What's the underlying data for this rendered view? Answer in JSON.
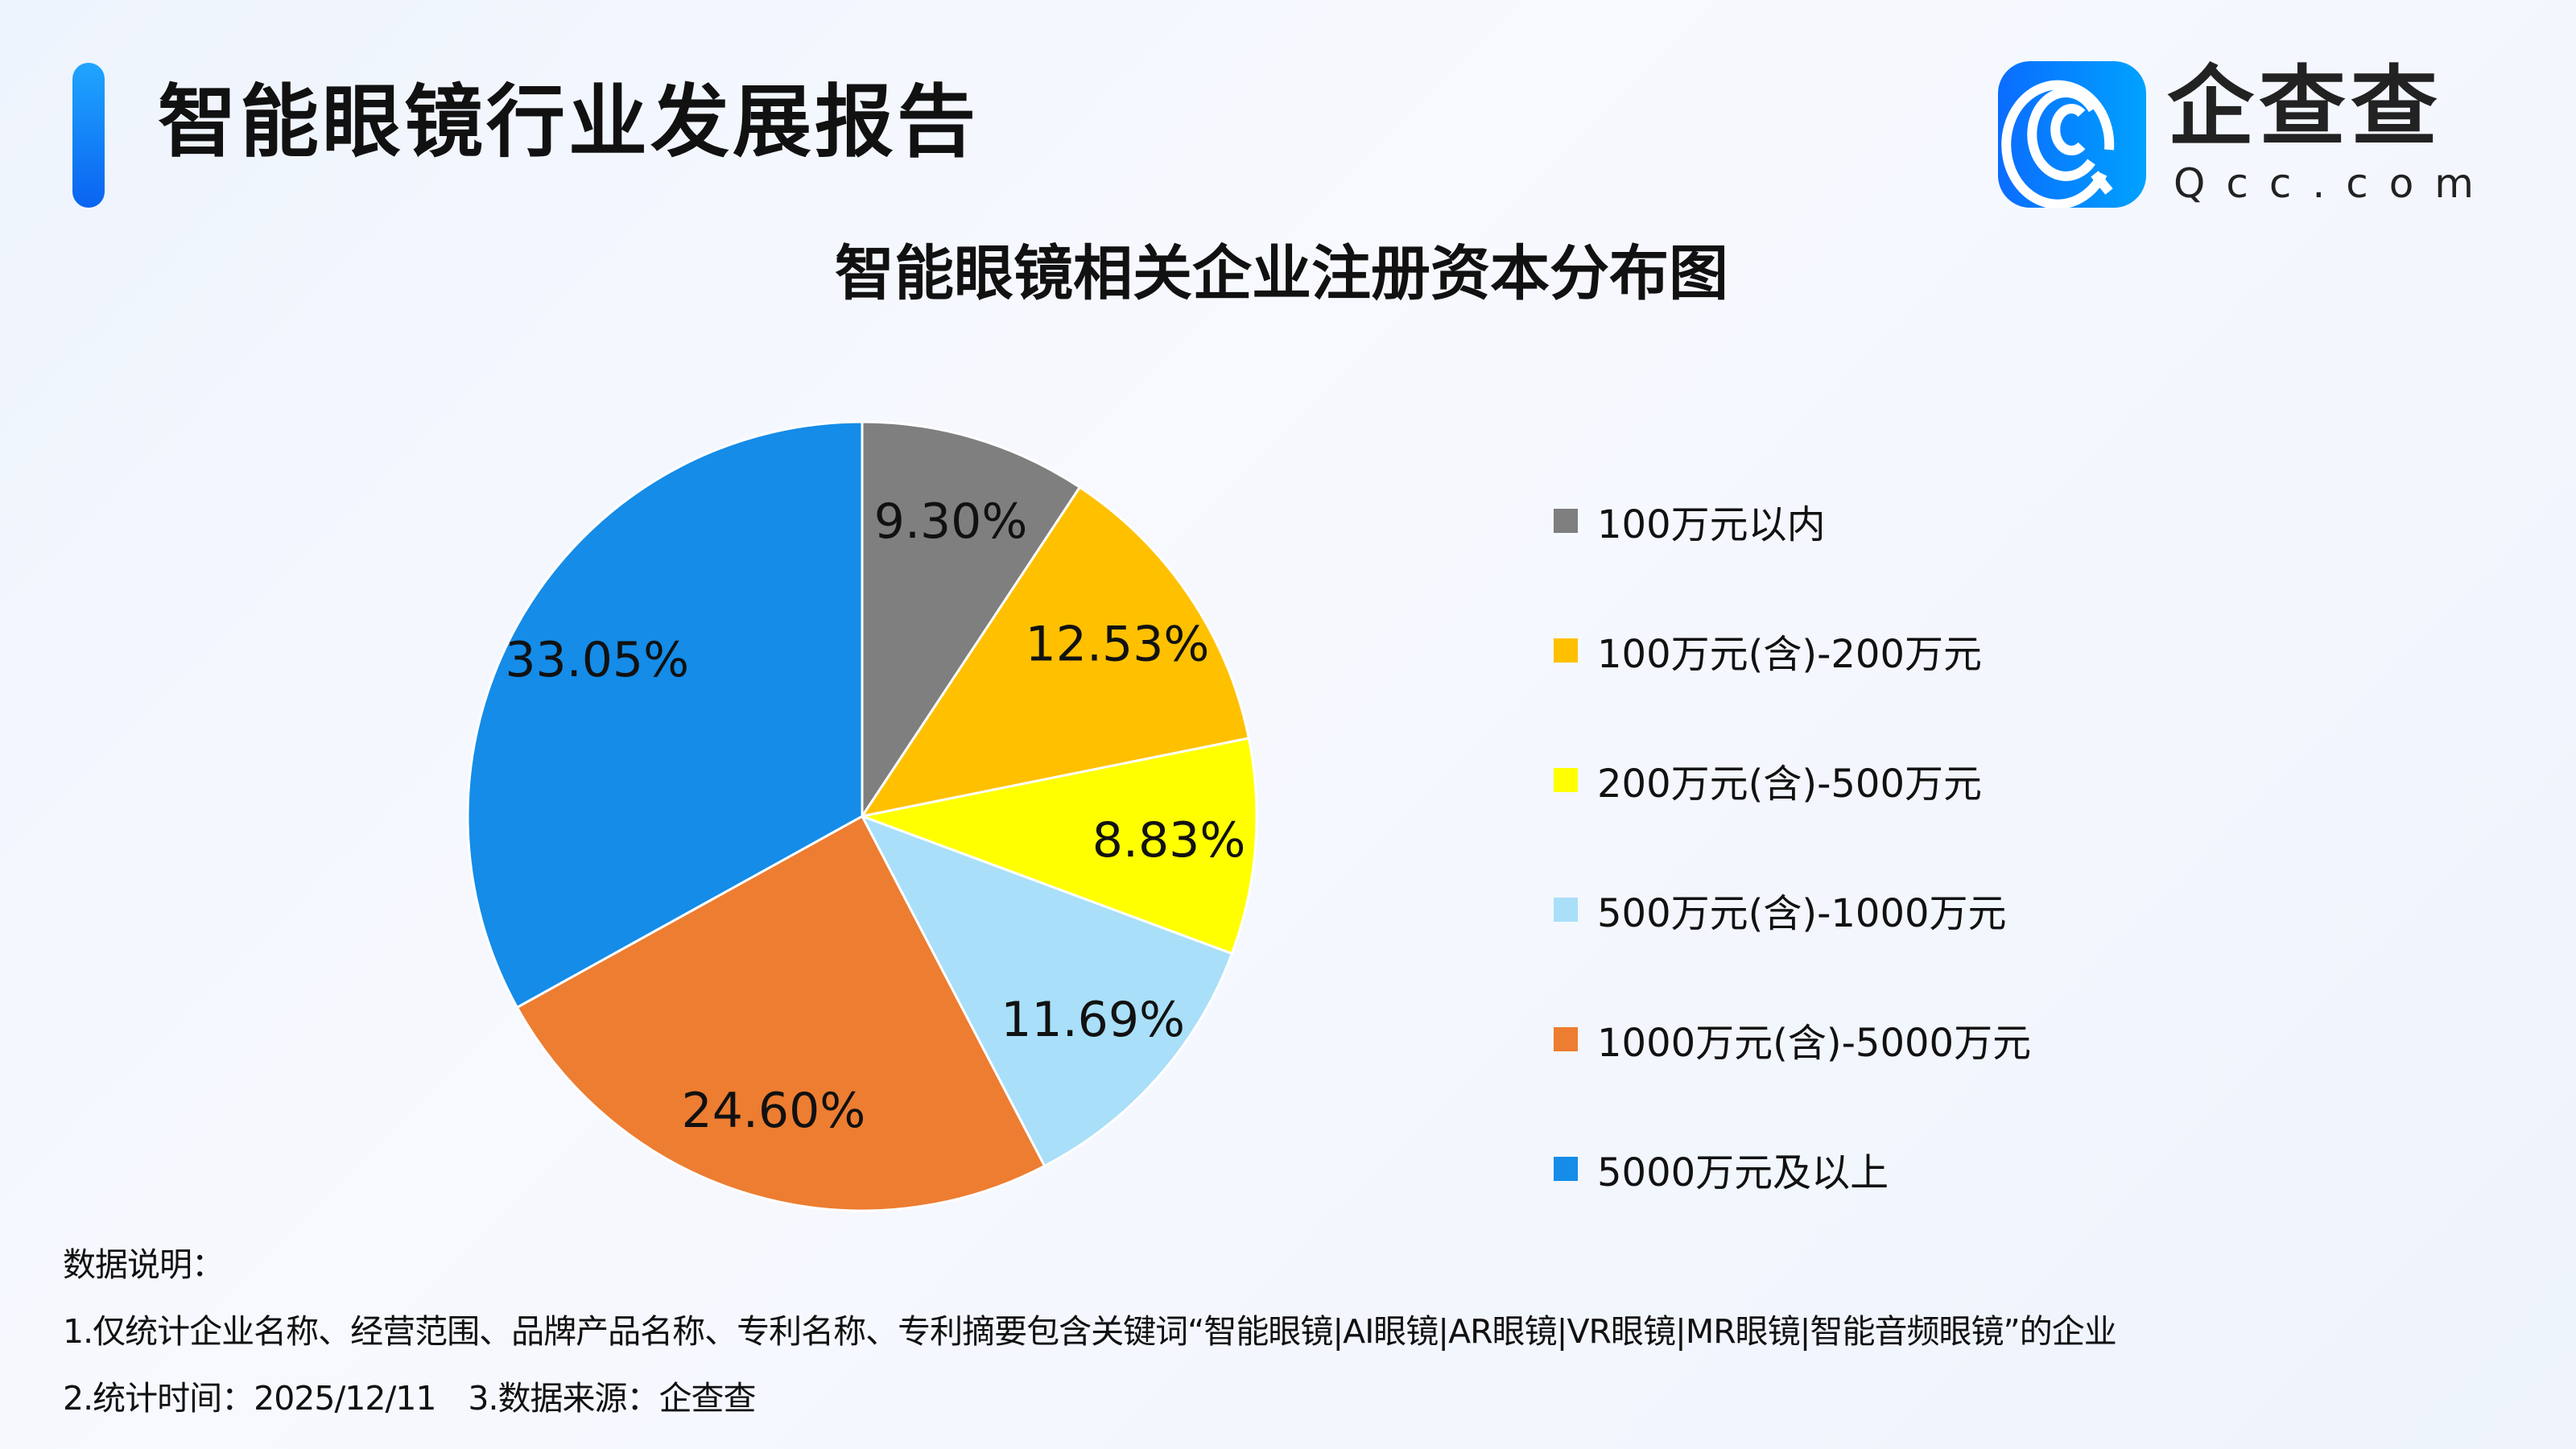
{
  "header": {
    "title": "智能眼镜行业发展报告",
    "logo_text": "企查查",
    "logo_sub": "Qcc.com"
  },
  "colors": {
    "accent": "#148CE8"
  },
  "chart_data": {
    "type": "pie",
    "title": "智能眼镜相关企业注册资本分布图",
    "legend_position": "right",
    "start": "top-clockwise",
    "slices": [
      {
        "label": "100万元以内",
        "value": 9.3,
        "text": "9.30%",
        "color": "#7F7F7F"
      },
      {
        "label": "100万元(含)-200万元",
        "value": 12.53,
        "text": "12.53%",
        "color": "#FFC000"
      },
      {
        "label": "200万元(含)-500万元",
        "value": 8.83,
        "text": "8.83%",
        "color": "#FFFF00"
      },
      {
        "label": "500万元(含)-1000万元",
        "value": 11.69,
        "text": "11.69%",
        "color": "#A9DFF9"
      },
      {
        "label": "1000万元(含)-5000万元",
        "value": 24.6,
        "text": "24.60%",
        "color": "#ED7D31"
      },
      {
        "label": "5000万元及以上",
        "value": 33.05,
        "text": "33.05%",
        "color": "#148CE8"
      }
    ]
  },
  "footer": {
    "heading": "数据说明：",
    "line1": "1.仅统计企业名称、经营范围、品牌产品名称、专利名称、专利摘要包含关键词“智能眼镜|AI眼镜|AR眼镜|VR眼镜|MR眼镜|智能音频眼镜”的企业",
    "line2": "2.统计时间：2025/12/11　3.数据来源：企查查"
  }
}
